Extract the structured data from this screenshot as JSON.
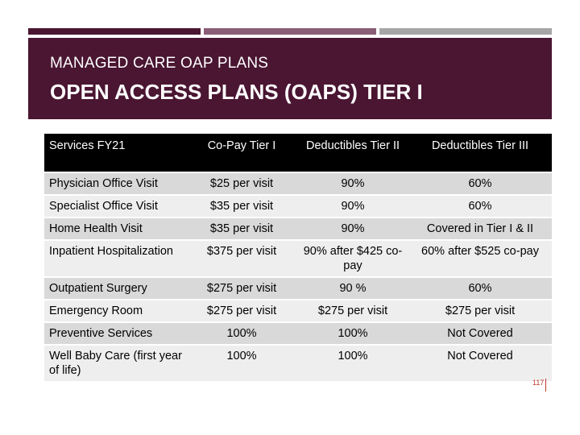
{
  "header": {
    "subtitle": "MANAGED CARE OAP PLANS",
    "title": "OPEN ACCESS PLANS (OAPS) TIER I"
  },
  "table": {
    "columns": [
      "Services FY21",
      "Co-Pay Tier I",
      "Deductibles Tier II",
      "Deductibles Tier III"
    ],
    "rows": [
      [
        "Physician Office Visit",
        "$25 per visit",
        "90%",
        "60%"
      ],
      [
        "Specialist Office Visit",
        "$35 per visit",
        "90%",
        "60%"
      ],
      [
        "Home Health Visit",
        "$35 per visit",
        "90%",
        "Covered in Tier I & II"
      ],
      [
        "Inpatient Hospitalization",
        "$375 per visit",
        "90% after $425 co-pay",
        "60% after $525 co-pay"
      ],
      [
        "Outpatient Surgery",
        "$275 per visit",
        "90 %",
        "60%"
      ],
      [
        "Emergency Room",
        "$275 per visit",
        "$275 per visit",
        "$275 per visit"
      ],
      [
        "Preventive Services",
        "100%",
        "100%",
        "Not Covered"
      ],
      [
        "Well Baby Care (first year of life)",
        "100%",
        "100%",
        "Not Covered"
      ]
    ]
  },
  "page_number": "117",
  "colors": {
    "header_bg": "#4a1632",
    "accent_mid": "#8a5e77",
    "accent_gray": "#a6a6a6",
    "row_dark": "#d9d9d9",
    "row_light": "#eeeeee"
  }
}
